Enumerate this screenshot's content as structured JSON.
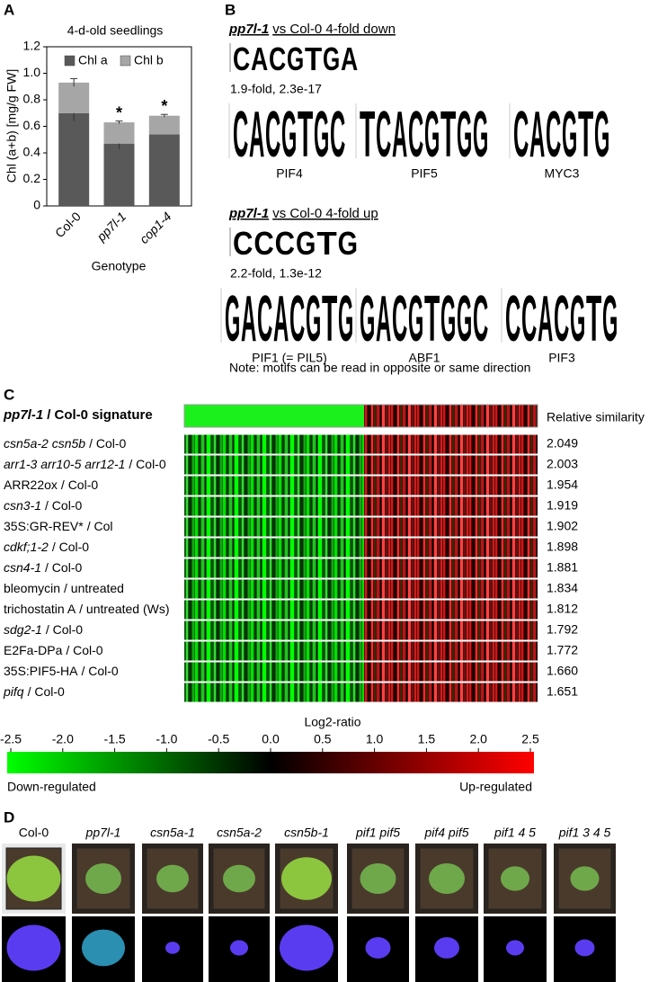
{
  "panel_labels": [
    "A",
    "B",
    "C",
    "D"
  ],
  "chart_data": {
    "type": "bar",
    "stacked": true,
    "title": "4-d-old seedlings",
    "y_label": "Chl (a+b) [mg/g FW]",
    "x_label": "Genotype",
    "categories": [
      "Col-0",
      "pp7l-1",
      "cop1-4"
    ],
    "series": [
      {
        "name": "Chl a",
        "color": "#595959",
        "values": [
          0.7,
          0.47,
          0.54
        ],
        "errors": [
          0.06,
          0.04,
          null
        ]
      },
      {
        "name": "Chl b",
        "color": "#a6a6a6",
        "values": [
          0.23,
          0.16,
          0.14
        ],
        "errors": [
          0.03,
          0.01,
          0.01
        ]
      }
    ],
    "significance": [
      null,
      "*",
      "*"
    ],
    "ylim": [
      0,
      1.2
    ],
    "yticks": [
      0,
      0.2,
      0.4,
      0.6,
      0.8,
      {
        "value": 1,
        "label": "1.0"
      },
      1.2
    ]
  },
  "letter_colors": {
    "A": "#1f9e3a",
    "C": "#2159b5",
    "G": "#f2a81d",
    "T": "#d9262e"
  },
  "motifs": [
    {
      "title_genotype": "pp7l-1",
      "title_rest": "vs Col-0 4-fold down",
      "logo": [
        "C",
        "A",
        "C",
        "G",
        "T",
        "G",
        "A"
      ],
      "stats": "1.9-fold, 2.3e-17",
      "matches": [
        {
          "name": "PIF4",
          "logo": [
            "C",
            "A",
            "C",
            "G",
            "T",
            "G",
            "C"
          ]
        },
        {
          "name": "PIF5",
          "logo": [
            "T",
            "C",
            "A",
            "C",
            "G",
            "T",
            "G",
            "G"
          ]
        },
        {
          "name": "MYC3",
          "logo": [
            "C",
            "A",
            "C",
            "G",
            "T",
            "G"
          ]
        }
      ]
    },
    {
      "title_genotype": "pp7l-1",
      "title_rest": "vs Col-0 4-fold up",
      "logo": [
        "C",
        "C",
        "C",
        "G",
        "T",
        "G"
      ],
      "stats": "2.2-fold, 1.3e-12",
      "matches": [
        {
          "name": "PIF1 (= PIL5)",
          "logo": [
            "G",
            "A",
            "C",
            "A",
            "C",
            "G",
            "T",
            "G"
          ]
        },
        {
          "name": "ABF1",
          "logo": [
            "G",
            "A",
            "C",
            "G",
            "T",
            "G",
            "G",
            "C"
          ]
        },
        {
          "name": "PIF3",
          "logo": [
            "C",
            "C",
            "A",
            "C",
            "G",
            "T",
            "G"
          ]
        }
      ]
    }
  ],
  "motif_note": "Note: motifs can be read in opposite or same direction",
  "signature": {
    "title_genotype": "pp7l-1",
    "title_rest": "/ Col-0 signature",
    "similarity_title": "Relative similarity",
    "rows": [
      {
        "name": "csn5a-2 csn5b",
        "ref": "/ Col-0",
        "italic": true,
        "similarity": "2.049"
      },
      {
        "name": "arr1-3 arr10-5 arr12-1",
        "ref": "/ Col-0",
        "italic": true,
        "similarity": "2.003"
      },
      {
        "name": "ARR22ox",
        "ref": "/ Col-0",
        "italic": false,
        "similarity": "1.954"
      },
      {
        "name": "csn3-1",
        "ref": "/ Col-0",
        "italic": true,
        "similarity": "1.919"
      },
      {
        "name": "35S:GR-REV*",
        "ref": "/ Col",
        "italic": false,
        "similarity": "1.902"
      },
      {
        "name": "cdkf;1-2",
        "ref": "/ Col-0",
        "italic": true,
        "similarity": "1.898"
      },
      {
        "name": "csn4-1",
        "ref": "/ Col-0",
        "italic": true,
        "similarity": "1.881"
      },
      {
        "name": "bleomycin",
        "ref": "/ untreated",
        "italic": false,
        "similarity": "1.834"
      },
      {
        "name": "trichostatin A",
        "ref": "/ untreated (Ws)",
        "italic": false,
        "similarity": "1.812"
      },
      {
        "name": "sdg2-1",
        "ref": "/ Col-0",
        "italic": true,
        "similarity": "1.792"
      },
      {
        "name": "E2Fa-DPa",
        "ref": "/ Col-0",
        "italic": false,
        "similarity": "1.772"
      },
      {
        "name": "35S:PIF5-HA",
        "ref": "/ Col-0",
        "italic": false,
        "similarity": "1.660"
      },
      {
        "name": "pifq",
        "ref": "/ Col-0",
        "italic": true,
        "similarity": "1.651"
      }
    ]
  },
  "colorbar": {
    "title": "Log2-ratio",
    "lim": [
      -2.5,
      2.5
    ],
    "colors": [
      "#00ff00",
      "#000000",
      "#ff0000"
    ],
    "ticks": [
      -2.5,
      {
        "value": -2,
        "label": "-2.0"
      },
      -1.5,
      {
        "value": -1,
        "label": "-1.0"
      },
      -0.5,
      {
        "value": 0,
        "label": "0.0"
      },
      0.5,
      {
        "value": 1,
        "label": "1.0"
      },
      1.5,
      {
        "value": 2,
        "label": "2.0"
      },
      2.5
    ],
    "low_label": "Down-regulated",
    "high_label": "Up-regulated"
  },
  "photos": {
    "labels": [
      {
        "text": "Col-0",
        "italic": false
      },
      {
        "text": "pp7l-1",
        "italic": true
      },
      {
        "text": "csn5a-1",
        "italic": true
      },
      {
        "text": "csn5a-2",
        "italic": true
      },
      {
        "text": "csn5b-1",
        "italic": true
      },
      {
        "text": "pif1 pif5",
        "italic": true
      },
      {
        "text": "pif4 pif5",
        "italic": true
      },
      {
        "text": "pif1 4 5",
        "italic": true
      },
      {
        "text": "pif1 3 4 5",
        "italic": true
      }
    ]
  }
}
